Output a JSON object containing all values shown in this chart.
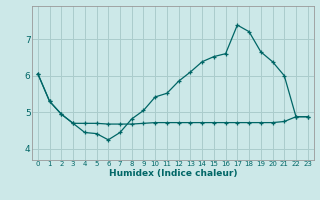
{
  "xlabel": "Humidex (Indice chaleur)",
  "ylabel": "",
  "background_color": "#cce8e8",
  "grid_color": "#aacccc",
  "line_color": "#006666",
  "xlim": [
    -0.5,
    23.5
  ],
  "ylim": [
    3.7,
    7.9
  ],
  "xticks": [
    0,
    1,
    2,
    3,
    4,
    5,
    6,
    7,
    8,
    9,
    10,
    11,
    12,
    13,
    14,
    15,
    16,
    17,
    18,
    19,
    20,
    21,
    22,
    23
  ],
  "yticks": [
    4,
    5,
    6,
    7
  ],
  "line1_x": [
    0,
    1,
    2,
    3,
    4,
    5,
    6,
    7,
    8,
    9,
    10,
    11,
    12,
    13,
    14,
    15,
    16,
    17,
    18,
    19,
    20,
    21,
    22,
    23
  ],
  "line1_y": [
    6.05,
    5.3,
    4.95,
    4.7,
    4.45,
    4.42,
    4.25,
    4.45,
    4.82,
    5.05,
    5.42,
    5.52,
    5.85,
    6.1,
    6.38,
    6.52,
    6.6,
    7.38,
    7.2,
    6.65,
    6.38,
    6.0,
    4.88,
    4.88
  ],
  "line2_x": [
    0,
    1,
    2,
    3,
    4,
    5,
    6,
    7,
    8,
    9,
    10,
    11,
    12,
    13,
    14,
    15,
    16,
    17,
    18,
    19,
    20,
    21,
    22,
    23
  ],
  "line2_y": [
    6.05,
    5.3,
    4.95,
    4.7,
    4.7,
    4.7,
    4.68,
    4.68,
    4.68,
    4.7,
    4.72,
    4.72,
    4.72,
    4.72,
    4.72,
    4.72,
    4.72,
    4.72,
    4.72,
    4.72,
    4.72,
    4.75,
    4.88,
    4.88
  ]
}
